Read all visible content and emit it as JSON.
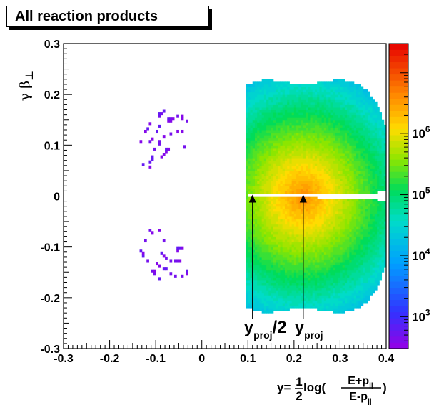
{
  "chart_data": {
    "type": "heatmap",
    "title": "All reaction products",
    "xlabel": "y=1/2 log((E+p∥)/(E-p∥))",
    "ylabel": "γβ⊥",
    "xlim": [
      -0.3,
      0.4
    ],
    "ylim": [
      -0.3,
      0.3
    ],
    "x_ticks": [
      "-0.3",
      "-0.2",
      "-0.1",
      "0",
      "0.1",
      "0.2",
      "0.3",
      "0.4"
    ],
    "y_ticks": [
      "-0.3",
      "-0.2",
      "-0.1",
      "0",
      "0.1",
      "0.2",
      "0.3"
    ],
    "colorbar": {
      "scale": "log",
      "range": [
        300,
        30000000
      ],
      "ticks": [
        {
          "value": 1000,
          "base": "10",
          "exp": "3"
        },
        {
          "value": 10000,
          "base": "10",
          "exp": "4"
        },
        {
          "value": 100000,
          "base": "10",
          "exp": "5"
        },
        {
          "value": 1000000,
          "base": "10",
          "exp": "6"
        }
      ]
    },
    "peak": {
      "x": 0.22,
      "y": 0.0
    },
    "annotations": [
      {
        "label": "y",
        "sub": "proj",
        "tail": "/2",
        "x": 0.11
      },
      {
        "label": "y",
        "sub": "proj",
        "tail": "",
        "x": 0.22
      }
    ],
    "xlabel_parts": {
      "prefix": "y=",
      "frac1_num": "1",
      "frac1_den": "2",
      "func": " log(",
      "num": "E+p",
      "num_sub": "||",
      "den": "E-p",
      "den_sub": "||",
      "close": ")"
    },
    "ylabel_parts": {
      "base": "γ β",
      "sub": "⊥"
    }
  }
}
